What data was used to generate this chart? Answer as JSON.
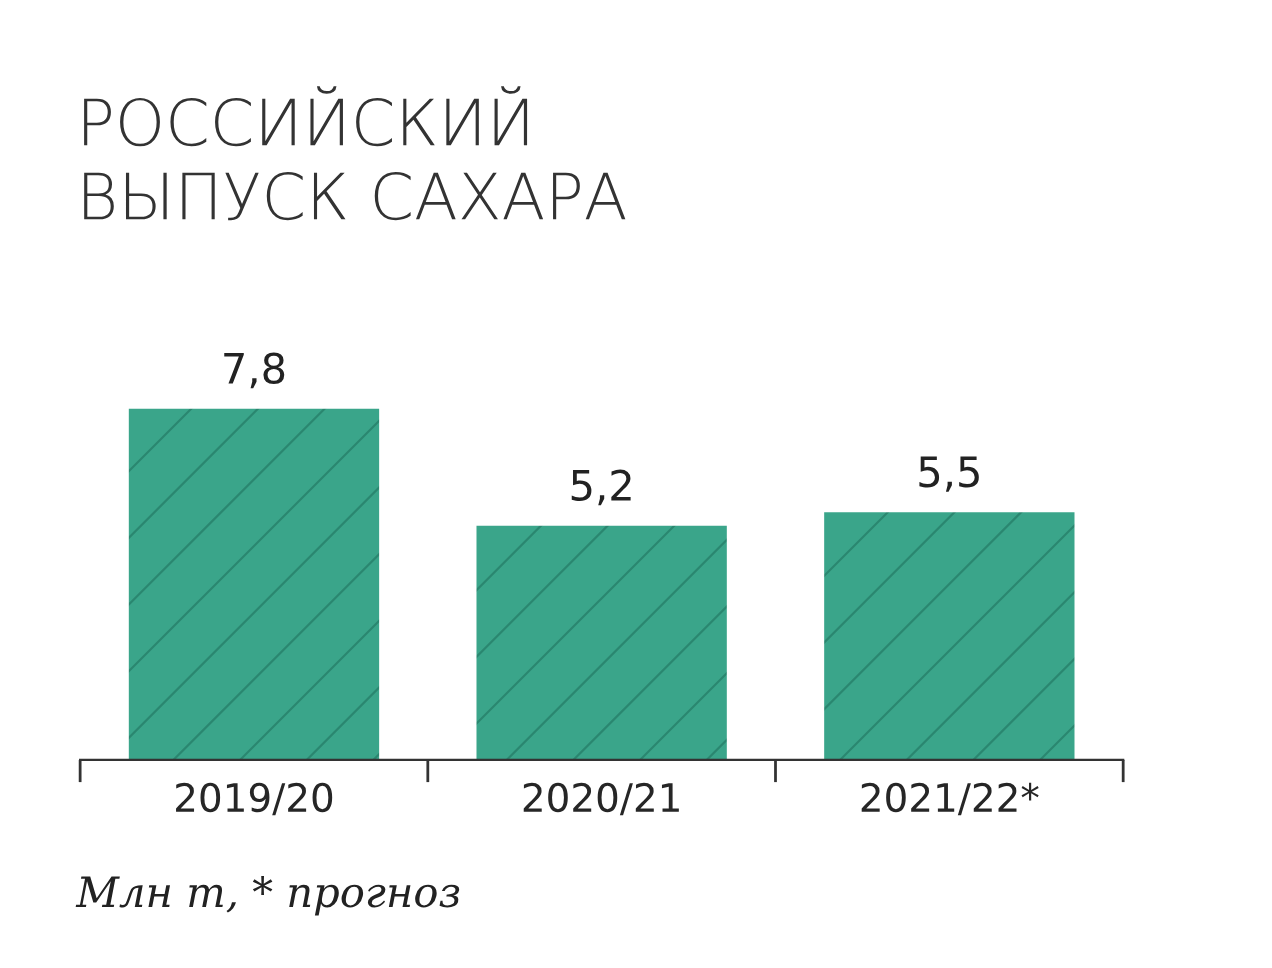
{
  "chart_data": {
    "type": "bar",
    "title": "РОССИЙСКИЙ\nВЫПУСК САХАРА",
    "categories": [
      "2019/20",
      "2020/21",
      "2021/22*"
    ],
    "values": [
      7.8,
      5.2,
      5.5
    ],
    "color": "#3aa58a",
    "value_labels": [
      "7,8",
      "5,2",
      "5,5"
    ],
    "annotations": [
      "Млн т, * прогноз"
    ]
  }
}
